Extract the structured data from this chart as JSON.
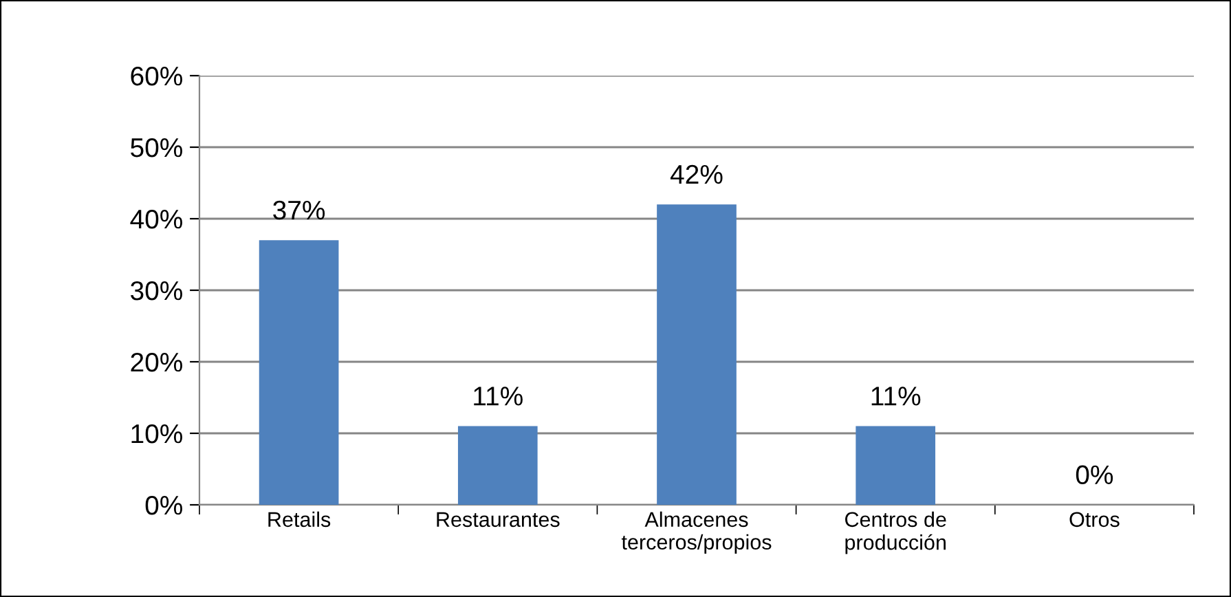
{
  "chart_data": {
    "type": "bar",
    "categories": [
      "Retails",
      "Restaurantes",
      "Almacenes\nterceros/propios",
      "Centros de\nproducción",
      "Otros"
    ],
    "values": [
      37,
      11,
      42,
      11,
      0
    ],
    "value_labels": [
      "37%",
      "11%",
      "42%",
      "11%",
      "0%"
    ],
    "color": "#4f81bd",
    "ylim": [
      0,
      60
    ],
    "yticks": [
      {
        "value": 0,
        "label": "0%"
      },
      {
        "value": 10,
        "label": "10%"
      },
      {
        "value": 20,
        "label": "20%"
      },
      {
        "value": 30,
        "label": "30%"
      },
      {
        "value": 40,
        "label": "40%"
      },
      {
        "value": 50,
        "label": "50%"
      },
      {
        "value": 60,
        "label": "60%"
      }
    ],
    "grid": "y"
  }
}
